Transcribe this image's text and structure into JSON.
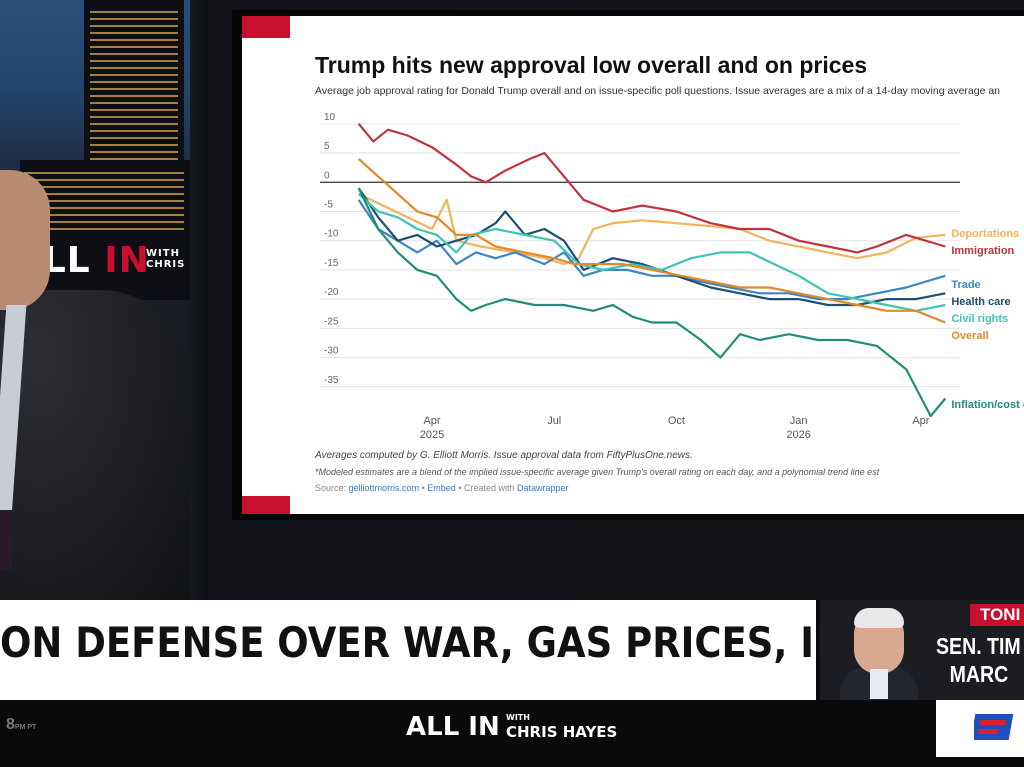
{
  "show": {
    "studio_logo_main": "ALL",
    "studio_logo_red": "IN",
    "studio_logo_with": "WITH CHRIS",
    "ticker_logo_main": "ALL IN",
    "ticker_logo_with": "WITH",
    "ticker_logo_host": "CHRIS HAYES",
    "ticker_time": "8",
    "ticker_time_suffix": "PM PT"
  },
  "lower_third": {
    "headline": "ON DEFENSE OVER WAR, GAS PRICES, INFLATION"
  },
  "guest": {
    "tag": "TONI",
    "name_line1": "SEN. TIM",
    "name_line2": "MARC"
  },
  "chart_card": {
    "title": "Trump hits new approval low overall and on prices",
    "subtitle": "Average job approval rating for Donald Trump overall and on issue-specific poll questions. Issue averages are a mix of a 14-day moving average an",
    "footnote1": "Averages computed by G. Elliott Morris. Issue approval data from FiftyPlusOne.news.",
    "footnote2": "*Modeled estimates are a blend of the implied issue-specific average given Trump's overall rating on each day, and a polynomial trend line est",
    "source_label": "Source:",
    "source_link": "gelliottmorris.com",
    "sep1": "•",
    "embed": "Embed",
    "sep2": "•",
    "created_with": "Created with",
    "datawrapper": "Datawrapper"
  },
  "chart_data": {
    "type": "line",
    "title": "Trump hits new approval low overall and on prices",
    "x_ticks": [
      "Apr 2025",
      "Jul",
      "Oct",
      "Jan 2026",
      "Apr"
    ],
    "x_tick_values": [
      2025.25,
      2025.5,
      2025.75,
      2026.0,
      2026.25
    ],
    "x_tick_labels": [
      [
        "Apr",
        "2025"
      ],
      [
        "Jul",
        ""
      ],
      [
        "Oct",
        ""
      ],
      [
        "Jan",
        "2026"
      ],
      [
        "Apr",
        ""
      ]
    ],
    "xlim": [
      2025.07,
      2026.33
    ],
    "y_ticks": [
      10,
      5,
      0,
      -5,
      -10,
      -15,
      -20,
      -25,
      -30,
      -35
    ],
    "ylim": [
      -40,
      11
    ],
    "grid": true,
    "series": [
      {
        "name": "Deportations",
        "color": "#f0b45a",
        "points": [
          [
            2025.1,
            -2
          ],
          [
            2025.15,
            -4
          ],
          [
            2025.2,
            -6
          ],
          [
            2025.25,
            -8
          ],
          [
            2025.28,
            -3
          ],
          [
            2025.3,
            -10
          ],
          [
            2025.35,
            -11
          ],
          [
            2025.42,
            -12
          ],
          [
            2025.48,
            -13
          ],
          [
            2025.52,
            -14
          ],
          [
            2025.55,
            -13
          ],
          [
            2025.58,
            -8
          ],
          [
            2025.62,
            -7
          ],
          [
            2025.68,
            -6.5
          ],
          [
            2025.75,
            -7
          ],
          [
            2025.82,
            -7.5
          ],
          [
            2025.88,
            -8
          ],
          [
            2025.94,
            -10
          ],
          [
            2026.0,
            -11
          ],
          [
            2026.06,
            -12
          ],
          [
            2026.12,
            -13
          ],
          [
            2026.18,
            -12
          ],
          [
            2026.24,
            -9.5
          ],
          [
            2026.3,
            -9
          ]
        ]
      },
      {
        "name": "Immigration",
        "color": "#c0323c",
        "points": [
          [
            2025.1,
            10
          ],
          [
            2025.13,
            7
          ],
          [
            2025.16,
            9
          ],
          [
            2025.2,
            8
          ],
          [
            2025.25,
            6
          ],
          [
            2025.3,
            3
          ],
          [
            2025.33,
            1
          ],
          [
            2025.36,
            0
          ],
          [
            2025.4,
            2
          ],
          [
            2025.45,
            4
          ],
          [
            2025.48,
            5
          ],
          [
            2025.52,
            1
          ],
          [
            2025.56,
            -3
          ],
          [
            2025.62,
            -5
          ],
          [
            2025.68,
            -4
          ],
          [
            2025.75,
            -5
          ],
          [
            2025.82,
            -7
          ],
          [
            2025.88,
            -8
          ],
          [
            2025.94,
            -8
          ],
          [
            2026.0,
            -10
          ],
          [
            2026.06,
            -11
          ],
          [
            2026.12,
            -12
          ],
          [
            2026.16,
            -11
          ],
          [
            2026.22,
            -9
          ],
          [
            2026.3,
            -11
          ]
        ]
      },
      {
        "name": "Trade",
        "color": "#3a86c8",
        "points": [
          [
            2025.1,
            -3
          ],
          [
            2025.14,
            -8
          ],
          [
            2025.18,
            -10
          ],
          [
            2025.22,
            -12
          ],
          [
            2025.26,
            -10
          ],
          [
            2025.3,
            -14
          ],
          [
            2025.34,
            -12
          ],
          [
            2025.38,
            -13
          ],
          [
            2025.42,
            -12
          ],
          [
            2025.48,
            -14
          ],
          [
            2025.52,
            -12
          ],
          [
            2025.56,
            -16
          ],
          [
            2025.6,
            -15
          ],
          [
            2025.65,
            -15
          ],
          [
            2025.7,
            -16
          ],
          [
            2025.75,
            -16
          ],
          [
            2025.8,
            -17
          ],
          [
            2025.86,
            -18
          ],
          [
            2025.92,
            -19
          ],
          [
            2025.98,
            -19
          ],
          [
            2026.04,
            -20
          ],
          [
            2026.1,
            -20
          ],
          [
            2026.16,
            -19
          ],
          [
            2026.22,
            -18
          ],
          [
            2026.3,
            -16
          ]
        ]
      },
      {
        "name": "Health care",
        "color": "#1f4f6e",
        "points": [
          [
            2025.1,
            -1
          ],
          [
            2025.14,
            -6
          ],
          [
            2025.18,
            -10
          ],
          [
            2025.22,
            -9
          ],
          [
            2025.26,
            -11
          ],
          [
            2025.3,
            -10
          ],
          [
            2025.34,
            -9
          ],
          [
            2025.38,
            -7
          ],
          [
            2025.4,
            -5
          ],
          [
            2025.44,
            -9
          ],
          [
            2025.48,
            -8
          ],
          [
            2025.52,
            -10
          ],
          [
            2025.56,
            -15
          ],
          [
            2025.62,
            -13
          ],
          [
            2025.68,
            -14
          ],
          [
            2025.75,
            -16
          ],
          [
            2025.82,
            -18
          ],
          [
            2025.88,
            -19
          ],
          [
            2025.94,
            -20
          ],
          [
            2026.0,
            -20
          ],
          [
            2026.06,
            -21
          ],
          [
            2026.12,
            -21
          ],
          [
            2026.18,
            -20
          ],
          [
            2026.24,
            -20
          ],
          [
            2026.3,
            -19
          ]
        ]
      },
      {
        "name": "Civil rights",
        "color": "#3fc4b4",
        "points": [
          [
            2025.1,
            -2
          ],
          [
            2025.14,
            -5
          ],
          [
            2025.18,
            -6
          ],
          [
            2025.22,
            -8
          ],
          [
            2025.26,
            -9
          ],
          [
            2025.3,
            -12
          ],
          [
            2025.33,
            -9
          ],
          [
            2025.38,
            -8
          ],
          [
            2025.44,
            -9
          ],
          [
            2025.5,
            -10
          ],
          [
            2025.55,
            -14
          ],
          [
            2025.6,
            -15
          ],
          [
            2025.66,
            -14
          ],
          [
            2025.72,
            -15
          ],
          [
            2025.78,
            -13
          ],
          [
            2025.84,
            -12
          ],
          [
            2025.9,
            -12
          ],
          [
            2025.95,
            -14
          ],
          [
            2026.0,
            -16
          ],
          [
            2026.06,
            -19
          ],
          [
            2026.12,
            -20
          ],
          [
            2026.18,
            -21
          ],
          [
            2026.24,
            -22
          ],
          [
            2026.3,
            -21
          ]
        ]
      },
      {
        "name": "Overall",
        "color": "#e08a2a",
        "points": [
          [
            2025.1,
            4
          ],
          [
            2025.14,
            1
          ],
          [
            2025.18,
            -2
          ],
          [
            2025.22,
            -5
          ],
          [
            2025.26,
            -6
          ],
          [
            2025.3,
            -9
          ],
          [
            2025.34,
            -9
          ],
          [
            2025.38,
            -11
          ],
          [
            2025.44,
            -12
          ],
          [
            2025.5,
            -13
          ],
          [
            2025.54,
            -14
          ],
          [
            2025.58,
            -14
          ],
          [
            2025.64,
            -14
          ],
          [
            2025.7,
            -15
          ],
          [
            2025.76,
            -16
          ],
          [
            2025.82,
            -17
          ],
          [
            2025.88,
            -18
          ],
          [
            2025.94,
            -18
          ],
          [
            2026.0,
            -19
          ],
          [
            2026.06,
            -20
          ],
          [
            2026.12,
            -21
          ],
          [
            2026.18,
            -22
          ],
          [
            2026.24,
            -22
          ],
          [
            2026.3,
            -24
          ]
        ]
      },
      {
        "name": "Inflation/cost of living",
        "color": "#1e8e78",
        "points": [
          [
            2025.1,
            -1
          ],
          [
            2025.14,
            -8
          ],
          [
            2025.18,
            -12
          ],
          [
            2025.22,
            -15
          ],
          [
            2025.26,
            -16
          ],
          [
            2025.3,
            -20
          ],
          [
            2025.33,
            -22
          ],
          [
            2025.36,
            -21
          ],
          [
            2025.4,
            -20
          ],
          [
            2025.46,
            -21
          ],
          [
            2025.52,
            -21
          ],
          [
            2025.58,
            -22
          ],
          [
            2025.62,
            -21
          ],
          [
            2025.66,
            -23
          ],
          [
            2025.7,
            -24
          ],
          [
            2025.75,
            -24
          ],
          [
            2025.8,
            -27
          ],
          [
            2025.84,
            -30
          ],
          [
            2025.88,
            -26
          ],
          [
            2025.92,
            -27
          ],
          [
            2025.98,
            -26
          ],
          [
            2026.04,
            -27
          ],
          [
            2026.1,
            -27
          ],
          [
            2026.16,
            -28
          ],
          [
            2026.22,
            -32
          ],
          [
            2026.27,
            -40
          ],
          [
            2026.3,
            -37
          ]
        ]
      }
    ]
  }
}
